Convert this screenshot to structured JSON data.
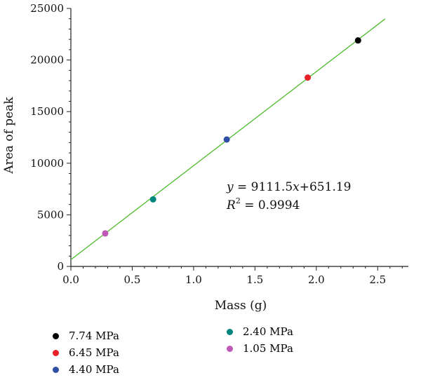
{
  "chart_data": {
    "type": "scatter",
    "xlabel": "Mass (g)",
    "ylabel": "Area of peak",
    "xlim": [
      0,
      2.75
    ],
    "ylim": [
      0,
      25000
    ],
    "x_ticks": [
      "0.0",
      "0.5",
      "1.0",
      "1.5",
      "2.0",
      "2.5"
    ],
    "y_ticks": [
      "0",
      "5000",
      "10000",
      "15000",
      "20000",
      "25000"
    ],
    "grid": false,
    "series": [
      {
        "name": "7.74 MPa",
        "color": "#000000",
        "x": [
          2.34
        ],
        "y": [
          21900
        ]
      },
      {
        "name": "6.45 MPa",
        "color": "#e8202a",
        "x": [
          1.93
        ],
        "y": [
          18300
        ]
      },
      {
        "name": "4.40 MPa",
        "color": "#2e4fa3",
        "x": [
          1.27
        ],
        "y": [
          12300
        ]
      },
      {
        "name": "2.40 MPa",
        "color": "#00857f",
        "x": [
          0.67
        ],
        "y": [
          6500
        ]
      },
      {
        "name": "1.05 MPa",
        "color": "#c058b8",
        "x": [
          0.28
        ],
        "y": [
          3200
        ]
      }
    ],
    "fit_line": {
      "slope": 9111.5,
      "intercept": 651.19,
      "x_range": [
        0,
        2.56
      ],
      "color": "#4dbb2a"
    },
    "annotations": {
      "equation": {
        "y_var": "y",
        "equals": " = 9111.5",
        "x_var": "x",
        "rest": "+651.19"
      },
      "r_squared": {
        "r": "R",
        "sup": "2",
        "rest": " = 0.9994"
      }
    },
    "legend_placement": "bottom"
  }
}
